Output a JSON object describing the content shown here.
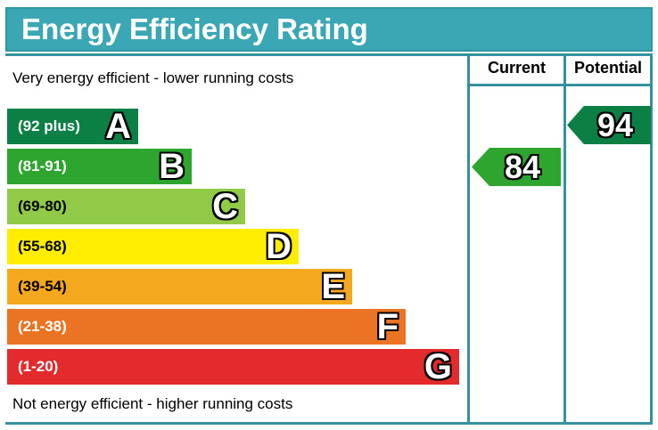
{
  "title": "Energy Efficiency Rating",
  "columns": {
    "current": "Current",
    "potential": "Potential"
  },
  "notes": {
    "top": "Very energy efficient - lower running costs",
    "bottom": "Not energy efficient - higher running costs"
  },
  "bands": [
    {
      "letter": "A",
      "range": "(92 plus)",
      "color": "#0c8044",
      "text_color": "#ffffff"
    },
    {
      "letter": "B",
      "range": "(81-91)",
      "color": "#2ea52e",
      "text_color": "#ffffff"
    },
    {
      "letter": "C",
      "range": "(69-80)",
      "color": "#91ca47",
      "text_color": "#000000"
    },
    {
      "letter": "D",
      "range": "(55-68)",
      "color": "#ffed00",
      "text_color": "#000000"
    },
    {
      "letter": "E",
      "range": "(39-54)",
      "color": "#f4a81d",
      "text_color": "#000000"
    },
    {
      "letter": "F",
      "range": "(21-38)",
      "color": "#ea7423",
      "text_color": "#ffffff"
    },
    {
      "letter": "G",
      "range": "(1-20)",
      "color": "#e32b2e",
      "text_color": "#ffffff"
    }
  ],
  "ratings": {
    "current": {
      "value": "84",
      "band": "B",
      "color": "#2ea52e"
    },
    "potential": {
      "value": "94",
      "band": "A",
      "color": "#0c8044"
    }
  },
  "theme": {
    "title_bar_color": "#3ca7b4",
    "border_color": "#36919e"
  },
  "chart_data": {
    "type": "bar",
    "title": "Energy Efficiency Rating",
    "categories": [
      "A",
      "B",
      "C",
      "D",
      "E",
      "F",
      "G"
    ],
    "band_ranges": [
      "92 plus",
      "81-91",
      "69-80",
      "55-68",
      "39-54",
      "21-38",
      "1-20"
    ],
    "band_colors": [
      "#0c8044",
      "#2ea52e",
      "#91ca47",
      "#ffed00",
      "#f4a81d",
      "#ea7423",
      "#e32b2e"
    ],
    "bar_relative_widths": [
      1,
      2,
      3,
      4,
      5,
      6,
      7
    ],
    "column_headers": [
      "Current",
      "Potential"
    ],
    "current_rating": 84,
    "current_band": "B",
    "potential_rating": 94,
    "potential_band": "A",
    "annotations": [
      "Very energy efficient - lower running costs",
      "Not energy efficient - higher running costs"
    ],
    "legend_position": "none",
    "grid": false
  }
}
